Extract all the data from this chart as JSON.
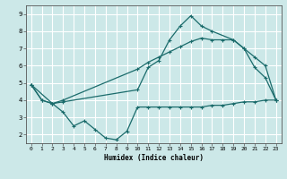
{
  "xlabel": "Humidex (Indice chaleur)",
  "xlim": [
    -0.5,
    23.5
  ],
  "ylim": [
    1.5,
    9.5
  ],
  "yticks": [
    2,
    3,
    4,
    5,
    6,
    7,
    8,
    9
  ],
  "xticks": [
    0,
    1,
    2,
    3,
    4,
    5,
    6,
    7,
    8,
    9,
    10,
    11,
    12,
    13,
    14,
    15,
    16,
    17,
    18,
    19,
    20,
    21,
    22,
    23
  ],
  "bg_color": "#cce8e8",
  "grid_color": "#ffffff",
  "line_color": "#1a6b6b",
  "line1_x": [
    0,
    1,
    2,
    3,
    10,
    11,
    12,
    13,
    14,
    15,
    16,
    17,
    19,
    20,
    21,
    22,
    23
  ],
  "line1_y": [
    4.9,
    4.0,
    3.8,
    3.9,
    4.6,
    5.9,
    6.3,
    7.5,
    8.3,
    8.9,
    8.3,
    8.0,
    7.5,
    7.0,
    5.9,
    5.3,
    4.0
  ],
  "line2_x": [
    0,
    2,
    3,
    10,
    11,
    12,
    13,
    14,
    15,
    16,
    17,
    18,
    19,
    20,
    21,
    22,
    23
  ],
  "line2_y": [
    4.9,
    3.8,
    4.0,
    5.8,
    6.2,
    6.5,
    6.8,
    7.1,
    7.4,
    7.6,
    7.5,
    7.5,
    7.5,
    7.0,
    6.5,
    6.0,
    4.0
  ],
  "line3_x": [
    0,
    1,
    2,
    3,
    4,
    5,
    6,
    7,
    8,
    9,
    10,
    11,
    12,
    13,
    14,
    15,
    16,
    17,
    18,
    19,
    20,
    21,
    22,
    23
  ],
  "line3_y": [
    4.9,
    4.0,
    3.8,
    3.3,
    2.5,
    2.8,
    2.3,
    1.8,
    1.7,
    2.2,
    3.6,
    3.6,
    3.6,
    3.6,
    3.6,
    3.6,
    3.6,
    3.7,
    3.7,
    3.8,
    3.9,
    3.9,
    4.0,
    4.0
  ]
}
